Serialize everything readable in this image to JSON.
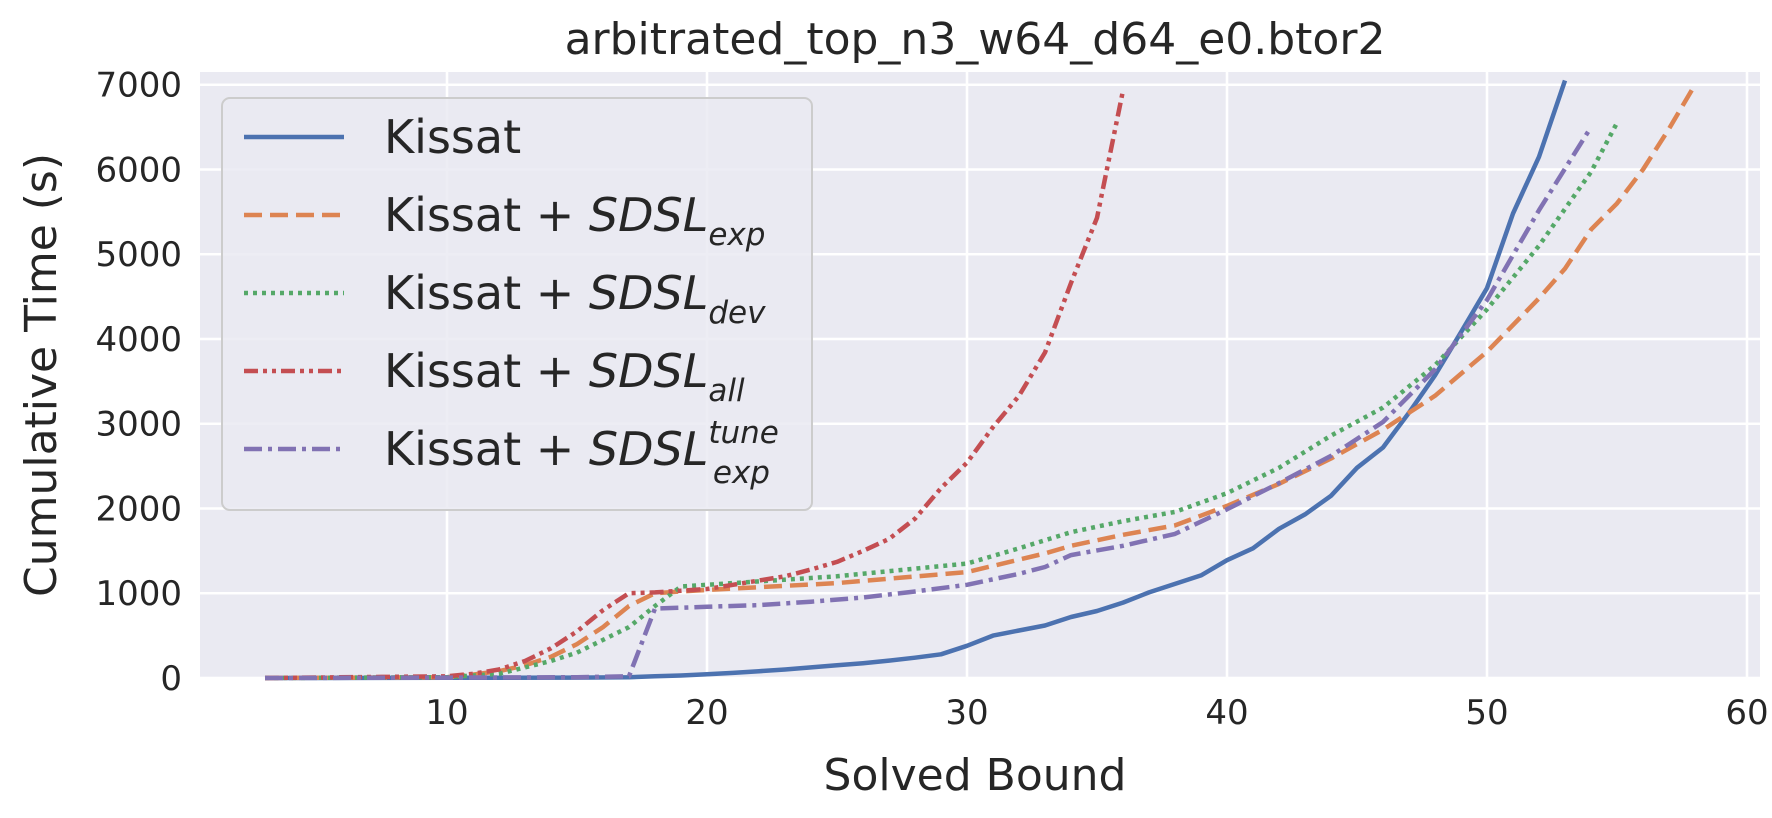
{
  "chart_data": {
    "type": "line",
    "title": "arbitrated_top_n3_w64_d64_e0.btor2",
    "xlabel": "Solved Bound",
    "ylabel": "Cumulative Time (s)",
    "xlim": [
      0.5,
      60.5
    ],
    "ylim": [
      0,
      7150
    ],
    "xticks": [
      10,
      20,
      30,
      40,
      50,
      60
    ],
    "yticks": [
      0,
      1000,
      2000,
      3000,
      4000,
      5000,
      6000,
      7000
    ],
    "grid": true,
    "legend_position": "upper-left",
    "background": "#eaeaf2",
    "series": [
      {
        "name": "Kissat",
        "legend": {
          "prefix": "Kissat"
        },
        "color": "#4c72b0",
        "dash": "solid",
        "x": [
          3,
          5,
          10,
          15,
          17,
          18,
          19,
          20,
          21,
          22,
          23,
          24,
          25,
          26,
          27,
          28,
          29,
          30,
          31,
          32,
          33,
          34,
          35,
          36,
          37,
          38,
          39,
          40,
          41,
          42,
          43,
          44,
          45,
          46,
          47,
          48,
          49,
          50,
          51,
          52,
          53
        ],
        "y": [
          0,
          0,
          2,
          5,
          10,
          20,
          30,
          45,
          60,
          80,
          100,
          125,
          150,
          175,
          205,
          240,
          280,
          380,
          500,
          560,
          620,
          720,
          790,
          890,
          1010,
          1110,
          1210,
          1390,
          1530,
          1760,
          1930,
          2150,
          2480,
          2720,
          3130,
          3570,
          4080,
          4600,
          5480,
          6150,
          7050
        ]
      },
      {
        "name": "Kissat + SDSLexp",
        "legend": {
          "prefix": "Kissat + ",
          "main": "SDSL",
          "sub": "exp",
          "sup": ""
        },
        "color": "#dd8452",
        "dash": "dashed",
        "x": [
          3,
          10,
          11,
          12,
          13,
          14,
          15,
          16,
          17,
          18,
          19,
          20,
          25,
          30,
          33,
          34,
          36,
          38,
          40,
          42,
          44,
          46,
          48,
          50,
          52,
          53,
          54,
          55,
          56,
          57,
          58
        ],
        "y": [
          0,
          10,
          40,
          80,
          150,
          250,
          400,
          600,
          850,
          1000,
          1020,
          1040,
          1120,
          1250,
          1470,
          1560,
          1690,
          1800,
          2030,
          2290,
          2590,
          2930,
          3330,
          3850,
          4480,
          4830,
          5290,
          5600,
          6000,
          6480,
          7000
        ]
      },
      {
        "name": "Kissat + SDSLdev",
        "legend": {
          "prefix": "Kissat + ",
          "main": "SDSL",
          "sub": "dev",
          "sup": ""
        },
        "color": "#55a868",
        "dash": "dotted",
        "x": [
          3,
          10,
          12,
          14,
          15,
          16,
          17,
          18,
          19,
          20,
          25,
          30,
          32,
          34,
          36,
          38,
          40,
          42,
          44,
          46,
          48,
          50,
          52,
          54,
          55
        ],
        "y": [
          0,
          10,
          50,
          200,
          300,
          450,
          600,
          850,
          1080,
          1100,
          1200,
          1350,
          1530,
          1720,
          1850,
          1960,
          2180,
          2480,
          2860,
          3190,
          3690,
          4350,
          5100,
          5970,
          6550
        ]
      },
      {
        "name": "Kissat + SDSLall",
        "legend": {
          "prefix": "Kissat + ",
          "main": "SDSL",
          "sub": "all",
          "sup": ""
        },
        "color": "#c44e52",
        "dash": "dashdotdot",
        "x": [
          3,
          10,
          11,
          12,
          13,
          14,
          15,
          16,
          17,
          18,
          19,
          20,
          21,
          22,
          23,
          24,
          25,
          26,
          27,
          28,
          29,
          30,
          31,
          32,
          33,
          34,
          35,
          36
        ],
        "y": [
          0,
          20,
          50,
          100,
          200,
          350,
          550,
          800,
          1000,
          1010,
          1030,
          1050,
          1100,
          1150,
          1200,
          1280,
          1370,
          1500,
          1640,
          1880,
          2240,
          2540,
          2960,
          3330,
          3840,
          4660,
          5430,
          6930
        ]
      },
      {
        "name": "Kissat + SDSLexp tune",
        "legend": {
          "prefix": "Kissat + ",
          "main": "SDSL",
          "sub": "exp",
          "sup": "tune"
        },
        "color": "#8172b3",
        "dash": "dashdot",
        "x": [
          3,
          10,
          15,
          17,
          18,
          19,
          20,
          22,
          24,
          26,
          28,
          30,
          32,
          33,
          34,
          36,
          38,
          40,
          42,
          44,
          46,
          48,
          50,
          52,
          54
        ],
        "y": [
          0,
          5,
          10,
          20,
          820,
          830,
          840,
          860,
          900,
          950,
          1020,
          1100,
          1230,
          1310,
          1450,
          1560,
          1700,
          1990,
          2300,
          2620,
          3020,
          3640,
          4460,
          5520,
          6500
        ]
      }
    ]
  }
}
